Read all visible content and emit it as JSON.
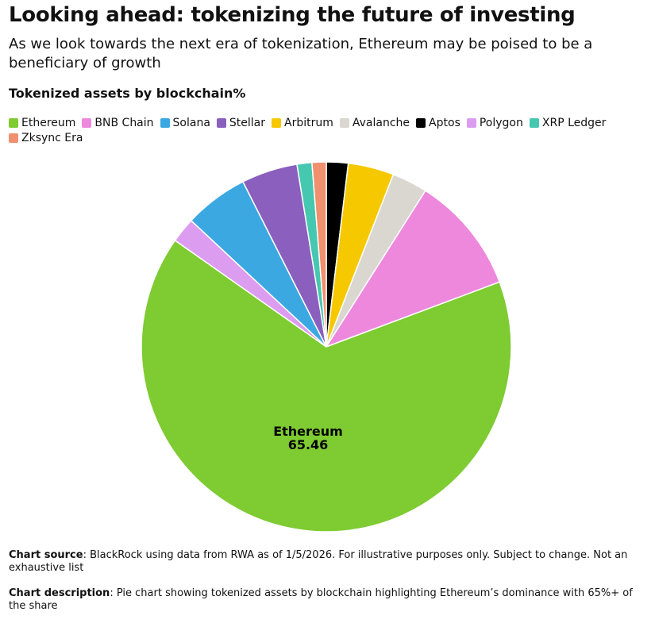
{
  "header": {
    "title": "Looking ahead: tokenizing the future of investing",
    "subtitle": "As we look towards the next era of tokenization, Ethereum may be poised to be a beneficiary of growth"
  },
  "chart_data": {
    "type": "pie",
    "title": "Tokenized assets by blockchain%",
    "categories": [
      "Aptos",
      "Arbitrum",
      "Avalanche",
      "BNB Chain",
      "Ethereum",
      "Polygon",
      "Solana",
      "Stellar",
      "XRP Ledger",
      "Zksync Era"
    ],
    "values": [
      1.9,
      4.0,
      3.1,
      10.3,
      65.46,
      2.2,
      5.6,
      4.9,
      1.3,
      1.24
    ],
    "colors": [
      "#000000",
      "#f6c800",
      "#d9d7d0",
      "#ee88dd",
      "#7ecb32",
      "#dc9cf0",
      "#3ba8e2",
      "#8a5fbe",
      "#45c7b0",
      "#f0906e"
    ],
    "legend": [
      "Ethereum",
      "BNB Chain",
      "Solana",
      "Stellar",
      "Arbitrum",
      "Avalanche",
      "Aptos",
      "Polygon",
      "XRP Ledger",
      "Zksync Era"
    ]
  },
  "footer": {
    "source": {
      "label": "Chart source",
      "text": ": BlackRock using data from RWA as of 1/5/2026. For illustrative purposes only. Subject to change. Not an exhaustive list"
    },
    "description": {
      "label": "Chart description",
      "text": ": Pie chart showing tokenized assets by blockchain highlighting Ethereum’s dominance with 65%+ of the share"
    }
  }
}
